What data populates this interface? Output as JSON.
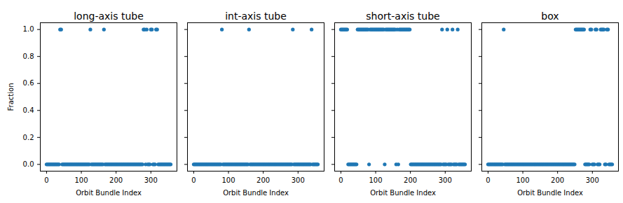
{
  "chart_data": [
    {
      "type": "scatter",
      "title": "long-axis tube",
      "xlabel": "Orbit Bundle Index",
      "ylabel": "Fraction",
      "color": "#1f77b4",
      "marker": "circle",
      "xlim": [
        -18,
        375
      ],
      "ylim": [
        -0.05,
        1.05
      ],
      "xticks": [
        0,
        100,
        200,
        300
      ],
      "yticks": [
        {
          "value": 0,
          "label": "0.0"
        },
        {
          "value": 0.2,
          "label": "0.2"
        },
        {
          "value": 0.4,
          "label": "0.4"
        },
        {
          "value": 0.6,
          "label": "0.6"
        },
        {
          "value": 0.8,
          "label": "0.8"
        },
        {
          "value": 1,
          "label": "1.0"
        }
      ],
      "x": [
        0,
        3,
        6,
        9,
        12,
        15,
        18,
        21,
        24,
        27,
        30,
        33,
        36,
        39,
        42,
        45,
        48,
        51,
        54,
        57,
        60,
        63,
        66,
        69,
        72,
        75,
        78,
        81,
        84,
        87,
        90,
        93,
        96,
        99,
        102,
        105,
        108,
        111,
        114,
        117,
        120,
        123,
        126,
        129,
        132,
        135,
        138,
        141,
        144,
        147,
        150,
        153,
        156,
        159,
        162,
        165,
        168,
        171,
        174,
        177,
        180,
        183,
        186,
        189,
        192,
        195,
        198,
        201,
        204,
        207,
        210,
        213,
        216,
        219,
        222,
        225,
        228,
        231,
        234,
        237,
        240,
        243,
        246,
        249,
        252,
        255,
        258,
        261,
        264,
        267,
        270,
        273,
        276,
        279,
        282,
        285,
        288,
        291,
        294,
        297,
        300,
        303,
        306,
        309,
        312,
        315,
        318,
        321,
        324,
        327,
        330,
        333,
        336,
        339,
        342,
        345,
        348,
        351,
        354,
        357
      ],
      "values": [
        0,
        0,
        0,
        0,
        0,
        0,
        0,
        0,
        0,
        0,
        0,
        0,
        0,
        1,
        1,
        0,
        0,
        0,
        0,
        0,
        0,
        0,
        0,
        0,
        0,
        0,
        0,
        0,
        0,
        0,
        0,
        0,
        0,
        0,
        0,
        0,
        0,
        0,
        0,
        0,
        0,
        0,
        1,
        0,
        0,
        0,
        0,
        0,
        0,
        0,
        0,
        0,
        0,
        0,
        0,
        1,
        0,
        0,
        0,
        0,
        0,
        0,
        0,
        0,
        0,
        0,
        0,
        0,
        0,
        0,
        0,
        0,
        0,
        0,
        0,
        0,
        0,
        0,
        0,
        0,
        0,
        0,
        0,
        0,
        0,
        0,
        0,
        0,
        0,
        0,
        0,
        0,
        0,
        1,
        1,
        0,
        1,
        0,
        0,
        0,
        1,
        1,
        0,
        0,
        0,
        1,
        1,
        0,
        0,
        0,
        0,
        0,
        0,
        0,
        0,
        0,
        0,
        0,
        0,
        0
      ]
    },
    {
      "type": "scatter",
      "title": "int-axis tube",
      "xlabel": "Orbit Bundle Index",
      "color": "#1f77b4",
      "marker": "circle",
      "tick_labels": "x",
      "xlim": [
        -18,
        375
      ],
      "ylim": [
        -0.05,
        1.05
      ],
      "xticks": [
        0,
        100,
        200,
        300
      ],
      "yticks": [
        {
          "value": 0,
          "label": "0.0"
        },
        {
          "value": 0.2,
          "label": "0.2"
        },
        {
          "value": 0.4,
          "label": "0.4"
        },
        {
          "value": 0.6,
          "label": "0.6"
        },
        {
          "value": 0.8,
          "label": "0.8"
        },
        {
          "value": 1,
          "label": "1.0"
        }
      ],
      "x": [
        0,
        3,
        6,
        9,
        12,
        15,
        18,
        21,
        24,
        27,
        30,
        33,
        36,
        39,
        42,
        45,
        48,
        51,
        54,
        57,
        60,
        63,
        66,
        69,
        72,
        75,
        78,
        81,
        84,
        87,
        90,
        93,
        96,
        99,
        102,
        105,
        108,
        111,
        114,
        117,
        120,
        123,
        126,
        129,
        132,
        135,
        138,
        141,
        144,
        147,
        150,
        153,
        156,
        159,
        162,
        165,
        168,
        171,
        174,
        177,
        180,
        183,
        186,
        189,
        192,
        195,
        198,
        201,
        204,
        207,
        210,
        213,
        216,
        219,
        222,
        225,
        228,
        231,
        234,
        237,
        240,
        243,
        246,
        249,
        252,
        255,
        258,
        261,
        264,
        267,
        270,
        273,
        276,
        279,
        282,
        285,
        288,
        291,
        294,
        297,
        300,
        303,
        306,
        309,
        312,
        315,
        318,
        321,
        324,
        327,
        330,
        333,
        336,
        339,
        342,
        345,
        348,
        351,
        354,
        357
      ],
      "values": [
        0,
        0,
        0,
        0,
        0,
        0,
        0,
        0,
        0,
        0,
        0,
        0,
        0,
        0,
        0,
        0,
        0,
        0,
        0,
        0,
        0,
        0,
        0,
        0,
        0,
        0,
        0,
        1,
        0,
        0,
        0,
        0,
        0,
        0,
        0,
        0,
        0,
        0,
        0,
        0,
        0,
        0,
        0,
        0,
        0,
        0,
        0,
        0,
        0,
        0,
        0,
        0,
        0,
        1,
        0,
        0,
        0,
        0,
        0,
        0,
        0,
        0,
        0,
        0,
        0,
        0,
        0,
        0,
        0,
        0,
        0,
        0,
        0,
        0,
        0,
        0,
        0,
        0,
        0,
        0,
        0,
        0,
        0,
        0,
        0,
        0,
        0,
        0,
        0,
        0,
        0,
        0,
        0,
        0,
        0,
        1,
        0,
        0,
        0,
        0,
        0,
        0,
        0,
        0,
        0,
        0,
        0,
        0,
        0,
        0,
        0,
        0,
        0,
        1,
        0,
        0,
        0,
        0,
        0,
        0
      ]
    },
    {
      "type": "scatter",
      "title": "short-axis tube",
      "xlabel": "Orbit Bundle Index",
      "color": "#1f77b4",
      "marker": "circle",
      "tick_labels": "x",
      "xlim": [
        -18,
        375
      ],
      "ylim": [
        -0.05,
        1.05
      ],
      "xticks": [
        0,
        100,
        200,
        300
      ],
      "yticks": [
        {
          "value": 0,
          "label": "0.0"
        },
        {
          "value": 0.2,
          "label": "0.2"
        },
        {
          "value": 0.4,
          "label": "0.4"
        },
        {
          "value": 0.6,
          "label": "0.6"
        },
        {
          "value": 0.8,
          "label": "0.8"
        },
        {
          "value": 1,
          "label": "1.0"
        }
      ],
      "x": [
        0,
        3,
        6,
        9,
        12,
        15,
        18,
        21,
        24,
        27,
        30,
        33,
        36,
        39,
        42,
        45,
        48,
        51,
        54,
        57,
        60,
        63,
        66,
        69,
        72,
        75,
        78,
        81,
        84,
        87,
        90,
        93,
        96,
        99,
        102,
        105,
        108,
        111,
        114,
        117,
        120,
        123,
        126,
        129,
        132,
        135,
        138,
        141,
        144,
        147,
        150,
        153,
        156,
        159,
        162,
        165,
        168,
        171,
        174,
        177,
        180,
        183,
        186,
        189,
        192,
        195,
        198,
        201,
        204,
        207,
        210,
        213,
        216,
        219,
        222,
        225,
        228,
        231,
        234,
        237,
        240,
        243,
        246,
        249,
        252,
        255,
        258,
        261,
        264,
        267,
        270,
        273,
        276,
        279,
        282,
        285,
        288,
        291,
        294,
        297,
        300,
        303,
        306,
        309,
        312,
        315,
        318,
        321,
        324,
        327,
        330,
        333,
        336,
        339,
        342,
        345,
        348,
        351,
        354,
        357
      ],
      "values": [
        1,
        1,
        1,
        1,
        1,
        1,
        1,
        0,
        0,
        0,
        0,
        0,
        0,
        0,
        0,
        0,
        1,
        1,
        1,
        1,
        1,
        1,
        1,
        1,
        1,
        1,
        1,
        0,
        1,
        1,
        1,
        1,
        1,
        1,
        1,
        1,
        1,
        1,
        1,
        1,
        1,
        1,
        0,
        1,
        1,
        1,
        1,
        1,
        1,
        1,
        1,
        1,
        1,
        0,
        1,
        0,
        1,
        1,
        1,
        1,
        1,
        1,
        1,
        1,
        1,
        1,
        1,
        0,
        0,
        0,
        0,
        0,
        0,
        0,
        0,
        0,
        0,
        0,
        0,
        0,
        0,
        0,
        0,
        0,
        0,
        0,
        0,
        0,
        0,
        0,
        0,
        0,
        0,
        0,
        0,
        0,
        0,
        1,
        0,
        0,
        0,
        0,
        1,
        0,
        0,
        0,
        0,
        1,
        0,
        0,
        0,
        0,
        1,
        0,
        0,
        0,
        0,
        0,
        0,
        0
      ]
    },
    {
      "type": "scatter",
      "title": "box",
      "xlabel": "Orbit Bundle Index",
      "color": "#1f77b4",
      "marker": "circle",
      "tick_labels": "x",
      "xlim": [
        -18,
        375
      ],
      "ylim": [
        -0.05,
        1.05
      ],
      "xticks": [
        0,
        100,
        200,
        300
      ],
      "yticks": [
        {
          "value": 0,
          "label": "0.0"
        },
        {
          "value": 0.2,
          "label": "0.2"
        },
        {
          "value": 0.4,
          "label": "0.4"
        },
        {
          "value": 0.6,
          "label": "0.6"
        },
        {
          "value": 0.8,
          "label": "0.8"
        },
        {
          "value": 1,
          "label": "1.0"
        }
      ],
      "x": [
        0,
        3,
        6,
        9,
        12,
        15,
        18,
        21,
        24,
        27,
        30,
        33,
        36,
        39,
        42,
        45,
        48,
        51,
        54,
        57,
        60,
        63,
        66,
        69,
        72,
        75,
        78,
        81,
        84,
        87,
        90,
        93,
        96,
        99,
        102,
        105,
        108,
        111,
        114,
        117,
        120,
        123,
        126,
        129,
        132,
        135,
        138,
        141,
        144,
        147,
        150,
        153,
        156,
        159,
        162,
        165,
        168,
        171,
        174,
        177,
        180,
        183,
        186,
        189,
        192,
        195,
        198,
        201,
        204,
        207,
        210,
        213,
        216,
        219,
        222,
        225,
        228,
        231,
        234,
        237,
        240,
        243,
        246,
        249,
        252,
        255,
        258,
        261,
        264,
        267,
        270,
        273,
        276,
        279,
        282,
        285,
        288,
        291,
        294,
        297,
        300,
        303,
        306,
        309,
        312,
        315,
        318,
        321,
        324,
        327,
        330,
        333,
        336,
        339,
        342,
        345,
        348,
        351,
        354,
        357
      ],
      "values": [
        0,
        0,
        0,
        0,
        0,
        0,
        0,
        0,
        0,
        0,
        0,
        0,
        0,
        0,
        0,
        1,
        0,
        0,
        0,
        0,
        0,
        0,
        0,
        0,
        0,
        0,
        0,
        0,
        0,
        0,
        0,
        0,
        0,
        0,
        0,
        0,
        0,
        0,
        0,
        0,
        0,
        0,
        0,
        0,
        0,
        0,
        0,
        0,
        0,
        0,
        0,
        0,
        0,
        0,
        0,
        0,
        0,
        0,
        0,
        0,
        0,
        0,
        0,
        0,
        0,
        0,
        0,
        0,
        0,
        0,
        0,
        0,
        0,
        0,
        0,
        0,
        0,
        0,
        0,
        0,
        0,
        0,
        0,
        0,
        1,
        1,
        1,
        1,
        1,
        1,
        1,
        1,
        1,
        0,
        0,
        0,
        0,
        0,
        1,
        1,
        0,
        0,
        0,
        1,
        1,
        0,
        0,
        0,
        1,
        1,
        1,
        1,
        0,
        0,
        1,
        1,
        0,
        0,
        0,
        0
      ]
    }
  ]
}
